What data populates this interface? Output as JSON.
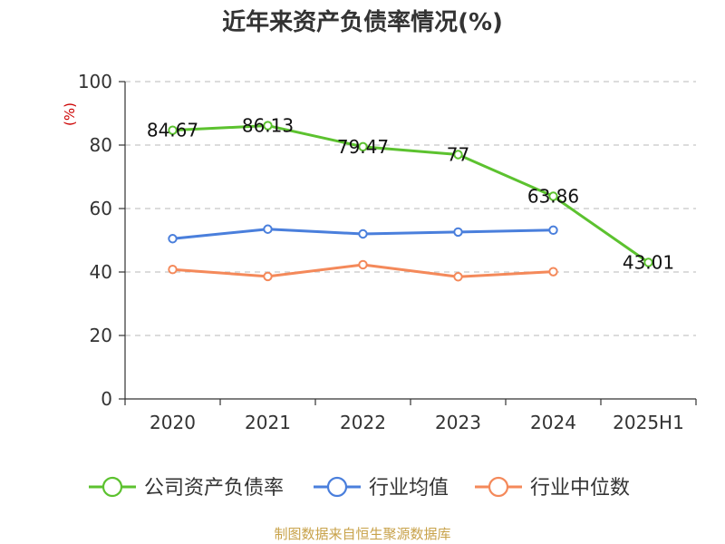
{
  "chart_data": {
    "type": "line",
    "title": "近年来资产负债率情况(%)",
    "unit": "(%)",
    "categories": [
      "2020",
      "2021",
      "2022",
      "2023",
      "2024",
      "2025H1"
    ],
    "ylim": [
      0,
      100
    ],
    "yticks": [
      0,
      20,
      40,
      60,
      80,
      100
    ],
    "grid": true,
    "legend_position": "bottom",
    "series": [
      {
        "name": "公司资产负债率",
        "color": "#5cc22f",
        "values": [
          84.67,
          86.13,
          79.47,
          77,
          63.86,
          43.01
        ],
        "labels": [
          "84.67",
          "86.13",
          "79.47",
          "77",
          "63.86",
          "43.01"
        ]
      },
      {
        "name": "行业均值",
        "color": "#4a7fdc",
        "values": [
          50.5,
          53.5,
          52.0,
          52.6,
          53.2,
          null
        ],
        "labels": []
      },
      {
        "name": "行业中位数",
        "color": "#f4895a",
        "values": [
          40.8,
          38.6,
          42.3,
          38.5,
          40.1,
          null
        ],
        "labels": []
      }
    ],
    "source": "制图数据来自恒生聚源数据库"
  }
}
